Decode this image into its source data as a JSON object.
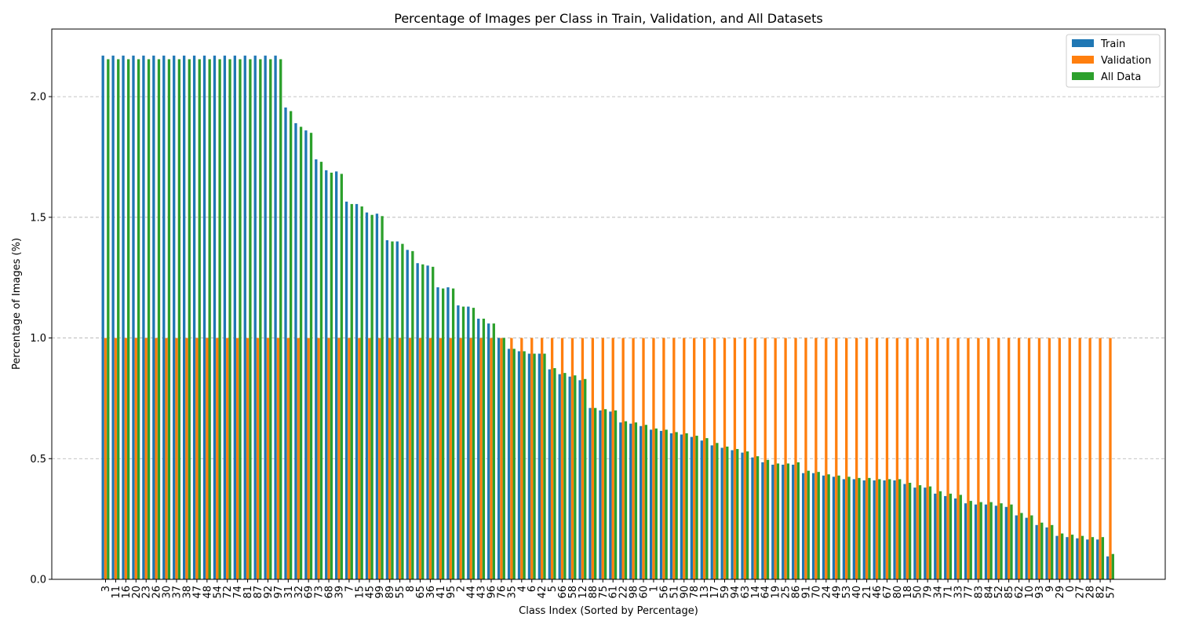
{
  "chart_data": {
    "type": "bar",
    "title": "Percentage of Images per Class in Train, Validation, and All Datasets",
    "xlabel": "Class Index (Sorted by Percentage)",
    "ylabel": "Percentage of Images (%)",
    "ylim": [
      0,
      2.28
    ],
    "yticks": [
      "0.0",
      "0.5",
      "1.0",
      "1.5",
      "2.0"
    ],
    "grid": "horizontal dashed",
    "legend_position": "top-right",
    "categories": [
      "3",
      "11",
      "16",
      "20",
      "23",
      "26",
      "30",
      "37",
      "38",
      "47",
      "48",
      "54",
      "72",
      "74",
      "81",
      "87",
      "92",
      "97",
      "31",
      "32",
      "69",
      "73",
      "68",
      "39",
      "7",
      "15",
      "45",
      "99",
      "89",
      "55",
      "8",
      "65",
      "36",
      "41",
      "95",
      "2",
      "44",
      "43",
      "96",
      "76",
      "35",
      "4",
      "6",
      "42",
      "5",
      "66",
      "58",
      "12",
      "88",
      "75",
      "61",
      "22",
      "98",
      "60",
      "1",
      "56",
      "51",
      "90",
      "78",
      "13",
      "17",
      "59",
      "94",
      "63",
      "14",
      "64",
      "19",
      "25",
      "86",
      "91",
      "70",
      "24",
      "49",
      "53",
      "40",
      "21",
      "46",
      "67",
      "80",
      "18",
      "50",
      "79",
      "34",
      "71",
      "33",
      "77",
      "83",
      "84",
      "52",
      "85",
      "62",
      "10",
      "93",
      "9",
      "29",
      "0",
      "27",
      "28",
      "82",
      "57"
    ],
    "series": [
      {
        "name": "Train",
        "color": "#1f77b4",
        "values": [
          2.17,
          2.17,
          2.17,
          2.17,
          2.17,
          2.17,
          2.17,
          2.17,
          2.17,
          2.17,
          2.17,
          2.17,
          2.17,
          2.17,
          2.17,
          2.17,
          2.17,
          2.17,
          1.955,
          1.89,
          1.86,
          1.74,
          1.695,
          1.69,
          1.565,
          1.555,
          1.52,
          1.515,
          1.405,
          1.4,
          1.365,
          1.31,
          1.3,
          1.21,
          1.21,
          1.135,
          1.13,
          1.08,
          1.06,
          1.0,
          0.955,
          0.945,
          0.935,
          0.935,
          0.87,
          0.85,
          0.84,
          0.825,
          0.71,
          0.7,
          0.695,
          0.65,
          0.645,
          0.635,
          0.62,
          0.615,
          0.605,
          0.6,
          0.59,
          0.575,
          0.555,
          0.545,
          0.535,
          0.525,
          0.505,
          0.485,
          0.475,
          0.475,
          0.475,
          0.44,
          0.44,
          0.43,
          0.425,
          0.415,
          0.415,
          0.41,
          0.41,
          0.41,
          0.41,
          0.395,
          0.38,
          0.38,
          0.355,
          0.345,
          0.335,
          0.315,
          0.31,
          0.31,
          0.305,
          0.3,
          0.265,
          0.255,
          0.225,
          0.215,
          0.18,
          0.175,
          0.17,
          0.165,
          0.165,
          0.095
        ]
      },
      {
        "name": "Validation",
        "color": "#ff7f0e",
        "values": [
          1,
          1,
          1,
          1,
          1,
          1,
          1,
          1,
          1,
          1,
          1,
          1,
          1,
          1,
          1,
          1,
          1,
          1,
          1,
          1,
          1,
          1,
          1,
          1,
          1,
          1,
          1,
          1,
          1,
          1,
          1,
          1,
          1,
          1,
          1,
          1,
          1,
          1,
          1,
          1,
          1,
          1,
          1,
          1,
          1,
          1,
          1,
          1,
          1,
          1,
          1,
          1,
          1,
          1,
          1,
          1,
          1,
          1,
          1,
          1,
          1,
          1,
          1,
          1,
          1,
          1,
          1,
          1,
          1,
          1,
          1,
          1,
          1,
          1,
          1,
          1,
          1,
          1,
          1,
          1,
          1,
          1,
          1,
          1,
          1,
          1,
          1,
          1,
          1,
          1,
          1,
          1,
          1,
          1,
          1,
          1,
          1,
          1,
          1,
          1
        ]
      },
      {
        "name": "All Data",
        "color": "#2ca02c",
        "values": [
          2.155,
          2.155,
          2.155,
          2.155,
          2.155,
          2.155,
          2.155,
          2.155,
          2.155,
          2.155,
          2.155,
          2.155,
          2.155,
          2.155,
          2.155,
          2.155,
          2.155,
          2.155,
          1.94,
          1.875,
          1.85,
          1.73,
          1.685,
          1.68,
          1.555,
          1.545,
          1.51,
          1.505,
          1.4,
          1.39,
          1.36,
          1.305,
          1.295,
          1.205,
          1.205,
          1.13,
          1.125,
          1.08,
          1.06,
          1.0,
          0.955,
          0.945,
          0.935,
          0.935,
          0.875,
          0.855,
          0.845,
          0.83,
          0.71,
          0.705,
          0.7,
          0.655,
          0.65,
          0.64,
          0.625,
          0.62,
          0.61,
          0.605,
          0.595,
          0.585,
          0.565,
          0.55,
          0.54,
          0.53,
          0.51,
          0.495,
          0.48,
          0.48,
          0.485,
          0.45,
          0.445,
          0.435,
          0.43,
          0.425,
          0.42,
          0.42,
          0.415,
          0.415,
          0.415,
          0.4,
          0.39,
          0.385,
          0.365,
          0.355,
          0.35,
          0.325,
          0.32,
          0.32,
          0.315,
          0.31,
          0.275,
          0.265,
          0.235,
          0.225,
          0.19,
          0.185,
          0.18,
          0.175,
          0.175,
          0.105
        ]
      }
    ]
  }
}
